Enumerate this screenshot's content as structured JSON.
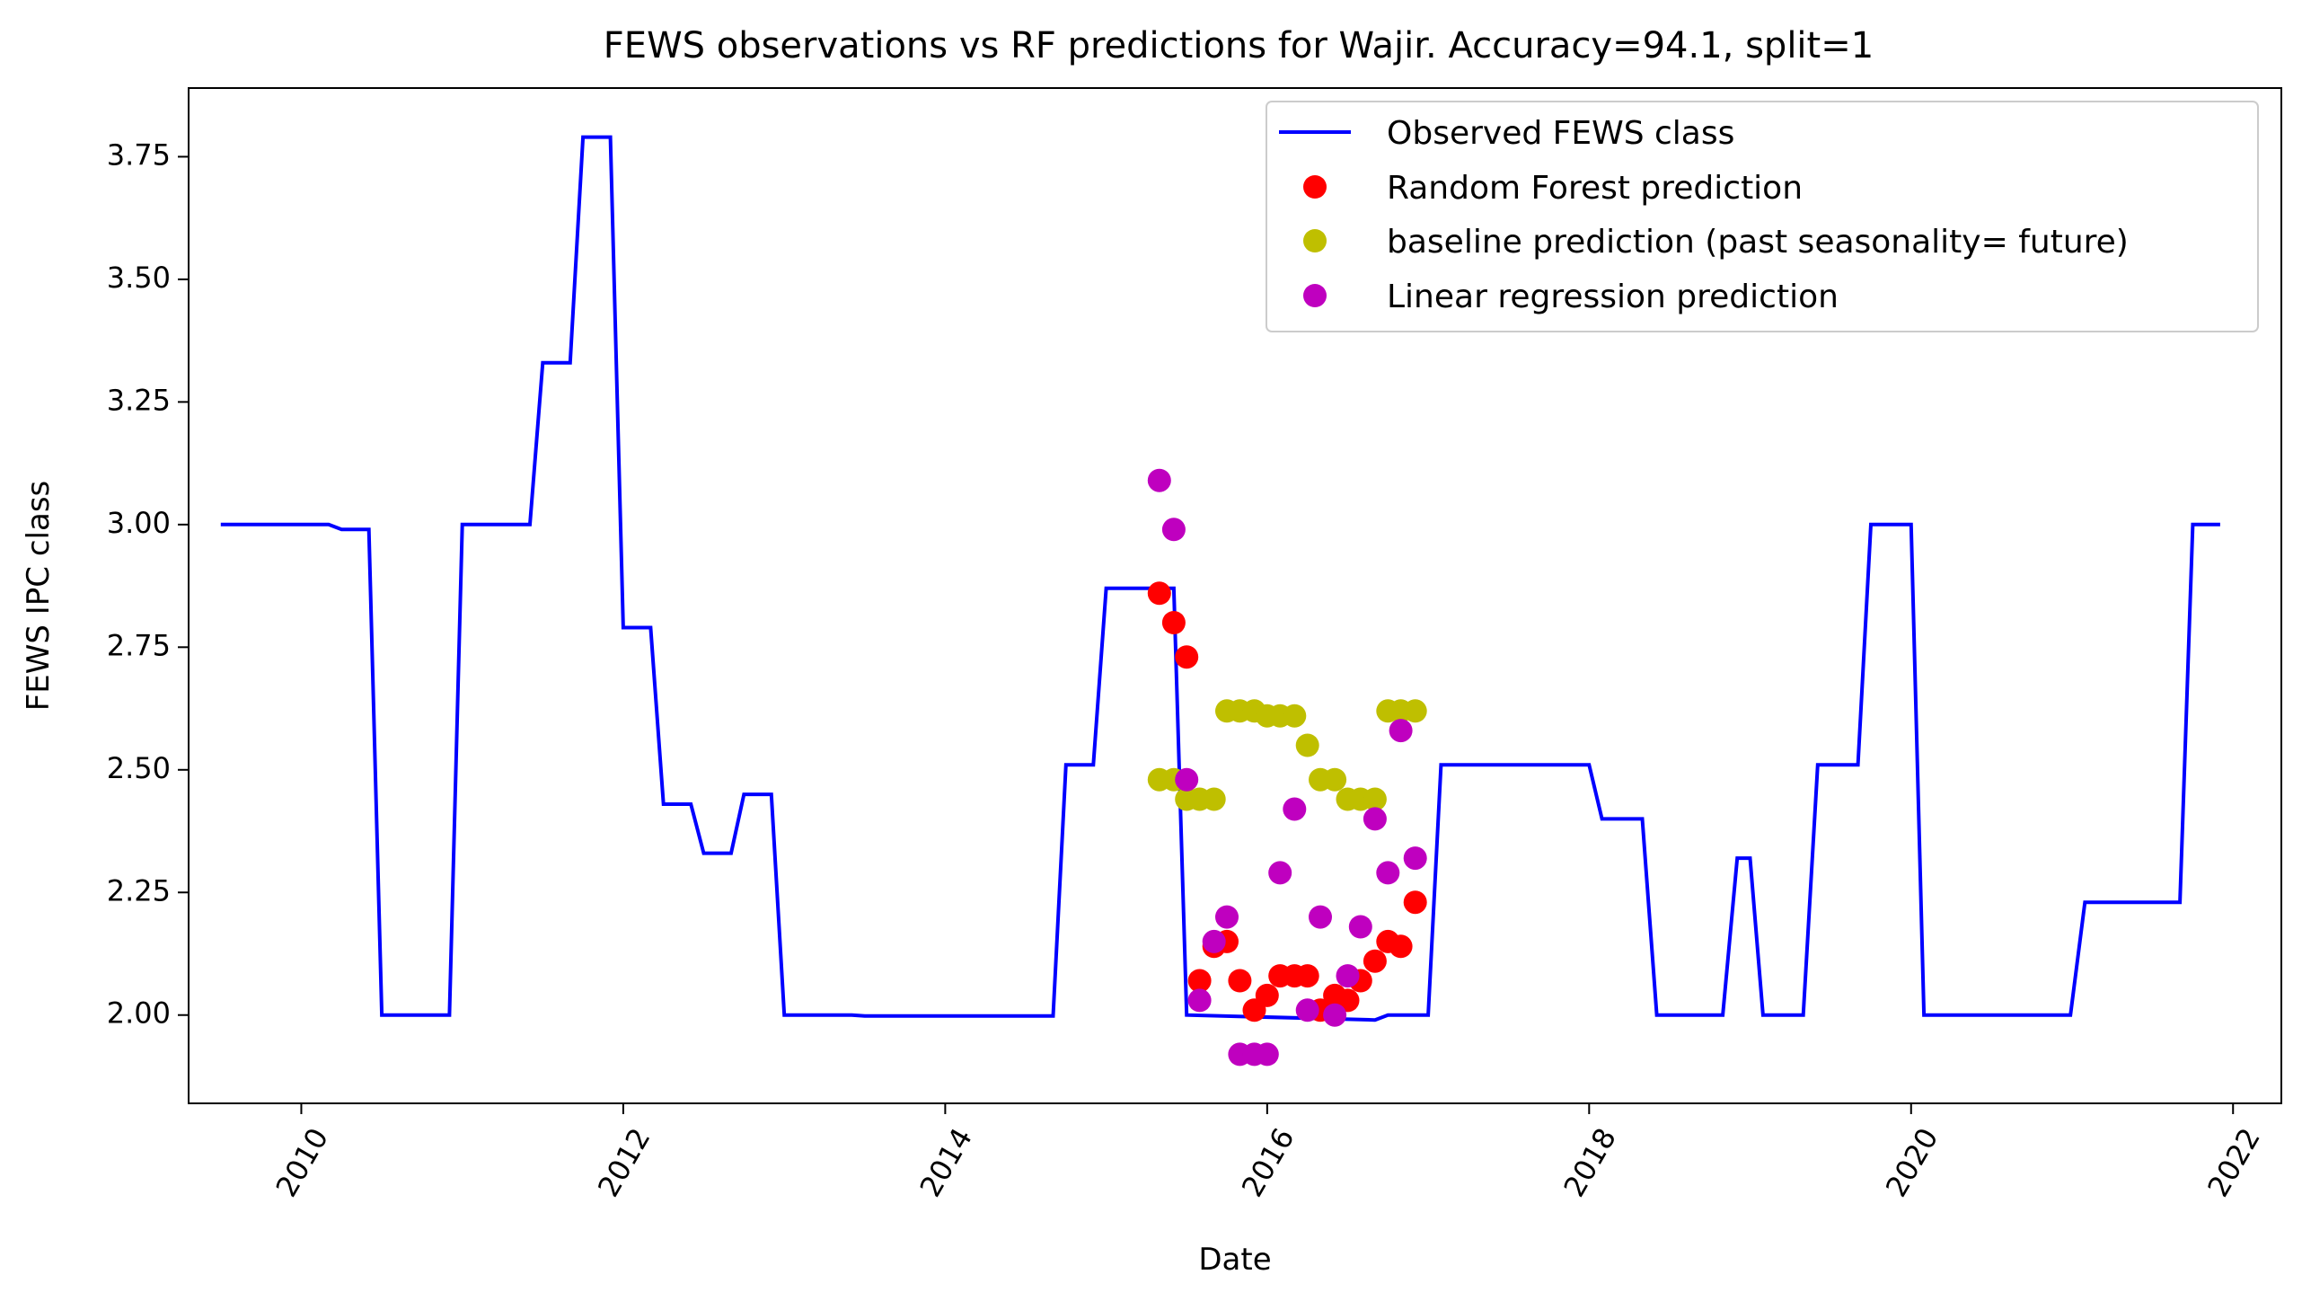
{
  "chart_data": {
    "type": "line",
    "title": "FEWS observations vs RF predictions for Wajir. Accuracy=94.1, split=1",
    "xlabel": "Date",
    "ylabel": "FEWS IPC class",
    "xlim": [
      2009.3,
      2022.3
    ],
    "ylim": [
      1.82,
      3.89
    ],
    "x_ticks": [
      2010,
      2012,
      2014,
      2016,
      2018,
      2020,
      2022
    ],
    "x_tick_labels": [
      "2010",
      "2012",
      "2014",
      "2016",
      "2018",
      "2020",
      "2022"
    ],
    "y_ticks": [
      2.0,
      2.25,
      2.5,
      2.75,
      3.0,
      3.25,
      3.5,
      3.75
    ],
    "y_tick_labels": [
      "2.00",
      "2.25",
      "2.50",
      "2.75",
      "3.00",
      "3.25",
      "3.50",
      "3.75"
    ],
    "legend_position": "top-right",
    "series": [
      {
        "name": "Observed FEWS class",
        "style": "line",
        "color": "#0000ff",
        "points": [
          [
            2009.5,
            3.0
          ],
          [
            2010.17,
            3.0
          ],
          [
            2010.25,
            2.99
          ],
          [
            2010.42,
            2.99
          ],
          [
            2010.5,
            2.0
          ],
          [
            2010.92,
            2.0
          ],
          [
            2011.0,
            3.0
          ],
          [
            2011.42,
            3.0
          ],
          [
            2011.5,
            3.33
          ],
          [
            2011.67,
            3.33
          ],
          [
            2011.75,
            3.79
          ],
          [
            2011.92,
            3.79
          ],
          [
            2012.0,
            2.79
          ],
          [
            2012.17,
            2.79
          ],
          [
            2012.25,
            2.43
          ],
          [
            2012.42,
            2.43
          ],
          [
            2012.5,
            2.33
          ],
          [
            2012.67,
            2.33
          ],
          [
            2012.75,
            2.45
          ],
          [
            2012.92,
            2.45
          ],
          [
            2013.0,
            2.0
          ],
          [
            2013.42,
            2.0
          ],
          [
            2013.5,
            1.998
          ],
          [
            2014.67,
            1.998
          ],
          [
            2014.75,
            2.51
          ],
          [
            2014.92,
            2.51
          ],
          [
            2015.0,
            2.87
          ],
          [
            2015.42,
            2.87
          ],
          [
            2015.5,
            2.0
          ],
          [
            2016.67,
            1.99
          ],
          [
            2016.75,
            2.0
          ],
          [
            2017.0,
            2.0
          ],
          [
            2017.08,
            2.51
          ],
          [
            2017.67,
            2.51
          ],
          [
            2017.75,
            2.51
          ],
          [
            2018.0,
            2.51
          ],
          [
            2018.08,
            2.4
          ],
          [
            2018.33,
            2.4
          ],
          [
            2018.42,
            2.0
          ],
          [
            2018.83,
            2.0
          ],
          [
            2018.92,
            2.32
          ],
          [
            2019.0,
            2.32
          ],
          [
            2019.08,
            2.0
          ],
          [
            2019.33,
            2.0
          ],
          [
            2019.42,
            2.51
          ],
          [
            2019.67,
            2.51
          ],
          [
            2019.75,
            3.0
          ],
          [
            2020.0,
            3.0
          ],
          [
            2020.08,
            2.0
          ],
          [
            2020.99,
            2.0
          ],
          [
            2021.08,
            2.23
          ],
          [
            2021.67,
            2.23
          ],
          [
            2021.75,
            3.0
          ],
          [
            2021.92,
            3.0
          ]
        ]
      },
      {
        "name": "Random Forest prediction",
        "style": "marker",
        "color": "#ff0000",
        "points": [
          [
            2015.33,
            2.86
          ],
          [
            2015.42,
            2.8
          ],
          [
            2015.5,
            2.73
          ],
          [
            2015.58,
            2.07
          ],
          [
            2015.67,
            2.14
          ],
          [
            2015.75,
            2.15
          ],
          [
            2015.83,
            2.07
          ],
          [
            2015.92,
            2.01
          ],
          [
            2016.0,
            2.04
          ],
          [
            2016.08,
            2.08
          ],
          [
            2016.17,
            2.08
          ],
          [
            2016.25,
            2.08
          ],
          [
            2016.33,
            2.01
          ],
          [
            2016.42,
            2.04
          ],
          [
            2016.5,
            2.03
          ],
          [
            2016.58,
            2.07
          ],
          [
            2016.67,
            2.11
          ],
          [
            2016.75,
            2.15
          ],
          [
            2016.83,
            2.14
          ],
          [
            2016.92,
            2.23
          ]
        ]
      },
      {
        "name": "baseline prediction (past seasonality= future)",
        "style": "marker",
        "color": "#bfbf00",
        "points": [
          [
            2015.33,
            2.48
          ],
          [
            2015.42,
            2.48
          ],
          [
            2015.5,
            2.44
          ],
          [
            2015.58,
            2.44
          ],
          [
            2015.67,
            2.44
          ],
          [
            2015.75,
            2.62
          ],
          [
            2015.83,
            2.62
          ],
          [
            2015.92,
            2.62
          ],
          [
            2016.0,
            2.61
          ],
          [
            2016.08,
            2.61
          ],
          [
            2016.17,
            2.61
          ],
          [
            2016.25,
            2.55
          ],
          [
            2016.33,
            2.48
          ],
          [
            2016.42,
            2.48
          ],
          [
            2016.5,
            2.44
          ],
          [
            2016.58,
            2.44
          ],
          [
            2016.67,
            2.44
          ],
          [
            2016.75,
            2.62
          ],
          [
            2016.83,
            2.62
          ],
          [
            2016.92,
            2.62
          ]
        ]
      },
      {
        "name": "Linear regression prediction",
        "style": "marker",
        "color": "#bf00bf",
        "points": [
          [
            2015.33,
            3.09
          ],
          [
            2015.42,
            2.99
          ],
          [
            2015.5,
            2.48
          ],
          [
            2015.58,
            2.03
          ],
          [
            2015.67,
            2.15
          ],
          [
            2015.75,
            2.2
          ],
          [
            2015.83,
            1.92
          ],
          [
            2015.92,
            1.92
          ],
          [
            2016.0,
            1.92
          ],
          [
            2016.08,
            2.29
          ],
          [
            2016.17,
            2.42
          ],
          [
            2016.25,
            2.01
          ],
          [
            2016.33,
            2.2
          ],
          [
            2016.42,
            2.0
          ],
          [
            2016.5,
            2.08
          ],
          [
            2016.58,
            2.18
          ],
          [
            2016.67,
            2.4
          ],
          [
            2016.75,
            2.29
          ],
          [
            2016.83,
            2.58
          ],
          [
            2016.92,
            2.32
          ]
        ]
      }
    ]
  }
}
